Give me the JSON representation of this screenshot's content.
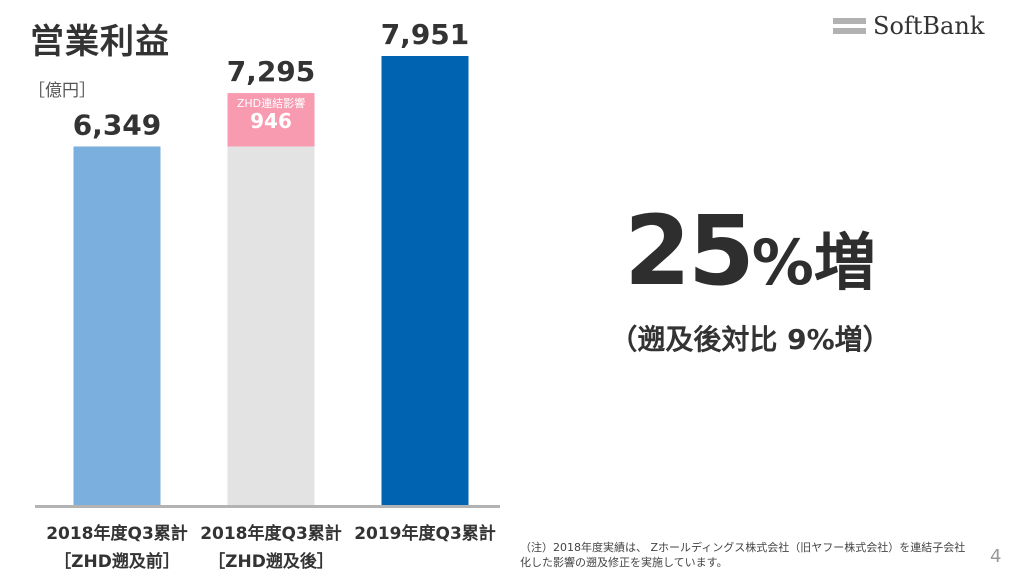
{
  "title": "営業利益",
  "unit_label": "［億円］",
  "logo": {
    "text": "SoftBank"
  },
  "chart_data": {
    "type": "bar",
    "categories": [
      [
        "2018年度Q3累計",
        "［ZHD遡及前］"
      ],
      [
        "2018年度Q3累計",
        "［ZHD遡及後］"
      ],
      [
        "2019年度Q3累計",
        ""
      ]
    ],
    "values": [
      6349,
      7295,
      7951
    ],
    "value_labels": [
      "6,349",
      "7,295",
      "7,951"
    ],
    "stack_segment": {
      "category_index": 1,
      "base_value": 6349,
      "value": 946,
      "label": "ZHD連結影響",
      "value_label": "946"
    },
    "ylim": [
      0,
      8500
    ],
    "bar_colors": [
      "#7aafde",
      "#e3e3e3",
      "#0063b2"
    ],
    "segment_color": "#f89bb0",
    "axis_color": "#b3b3b3",
    "legend": "none",
    "grid": false
  },
  "highlight": {
    "number": "25",
    "suffix": "%増",
    "sub": "（遡及後対比 9%増）"
  },
  "footnote": "（注）2018年度実績は、 Zホールディングス株式会社（旧ヤフー株式会社）を連結子会社化した影響の遡及修正を実施しています。",
  "page_number": "4"
}
